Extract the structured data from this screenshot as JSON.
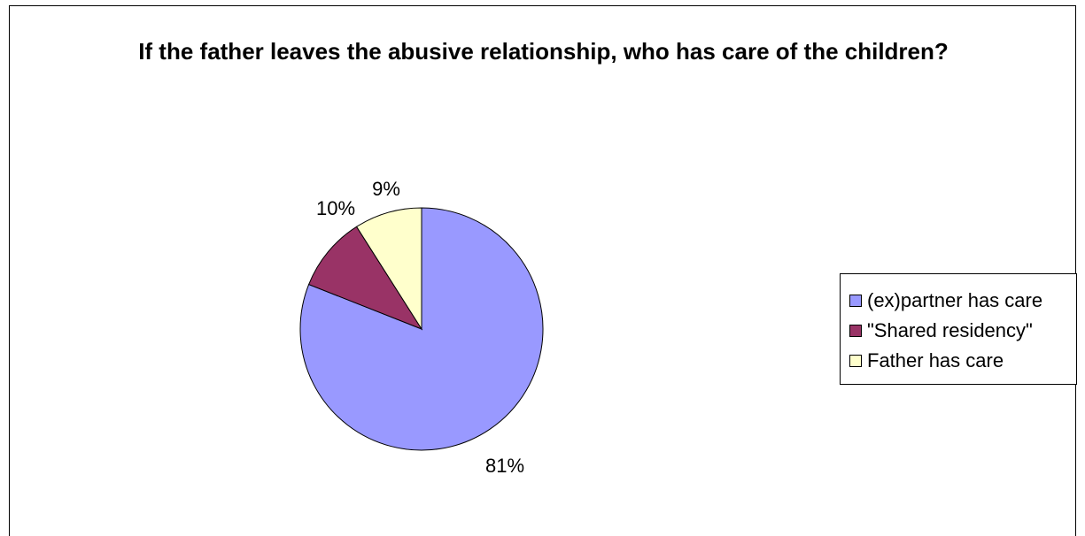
{
  "chart_data": {
    "type": "pie",
    "title": "If the father leaves the abusive relationship, who has care of the children?",
    "series": [
      {
        "name": "(ex)partner has care",
        "value": 81,
        "label": "81%",
        "color": "#9999ff"
      },
      {
        "name": "\"Shared residency\"",
        "value": 10,
        "label": "10%",
        "color": "#993366"
      },
      {
        "name": "Father has care",
        "value": 9,
        "label": "9%",
        "color": "#ffffcc"
      }
    ],
    "legend_position": "right"
  }
}
